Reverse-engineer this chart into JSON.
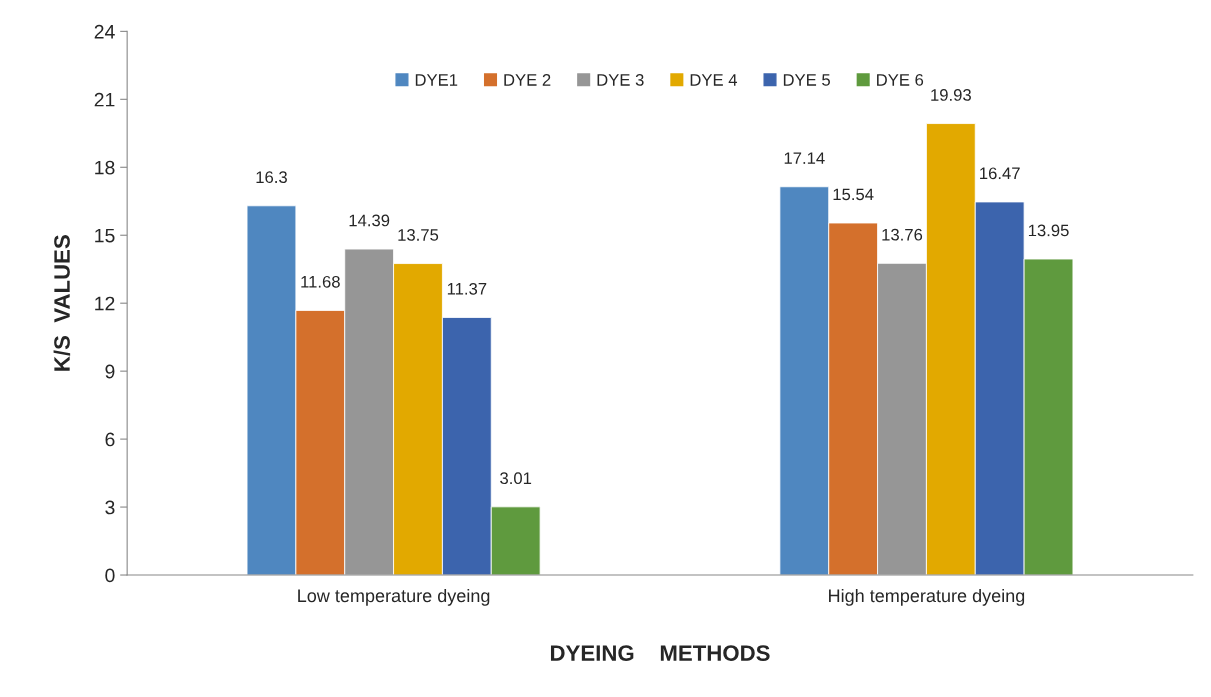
{
  "chart_data": {
    "type": "bar",
    "categories": [
      "Low temperature dyeing",
      "High temperature dyeing"
    ],
    "series": [
      {
        "name": "DYE1",
        "color": "#4f87c0",
        "values": [
          16.3,
          17.14
        ]
      },
      {
        "name": "DYE 2",
        "color": "#d4702c",
        "values": [
          11.68,
          15.54
        ]
      },
      {
        "name": "DYE 3",
        "color": "#969696",
        "values": [
          14.39,
          13.76
        ]
      },
      {
        "name": "DYE 4",
        "color": "#e2a900",
        "values": [
          13.75,
          19.93
        ]
      },
      {
        "name": "DYE 5",
        "color": "#3c64ad",
        "values": [
          11.37,
          16.47
        ]
      },
      {
        "name": "DYE 6",
        "color": "#5f9a3e",
        "values": [
          3.01,
          13.95
        ]
      }
    ],
    "xlabel": "DYEING    METHODS",
    "ylabel": "K/S  VALUES",
    "ylim": [
      0,
      24
    ],
    "yticks": [
      0,
      3,
      6,
      9,
      12,
      15,
      18,
      21,
      24
    ],
    "data_labels": true,
    "legend": "top",
    "grid": false
  }
}
